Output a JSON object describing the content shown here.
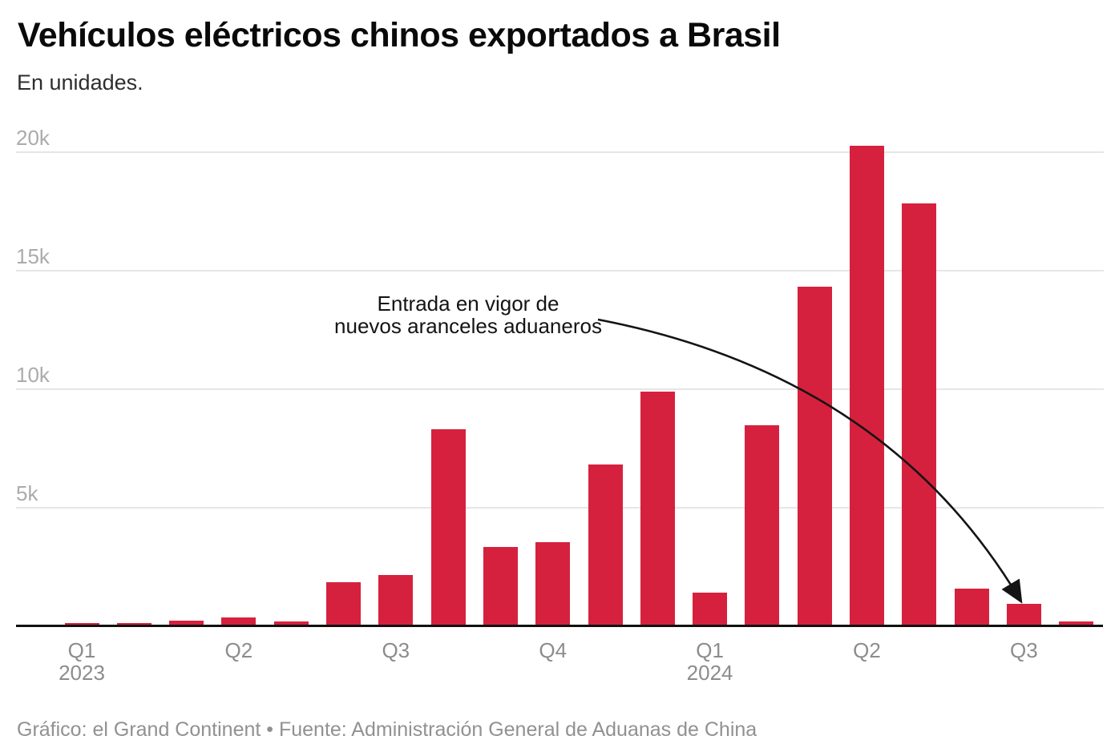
{
  "header": {
    "title": "Vehículos eléctricos chinos exportados a Brasil",
    "subtitle": "En unidades."
  },
  "chart_data": {
    "type": "bar",
    "title": "Vehículos eléctricos chinos exportados a Brasil",
    "subtitle": "En unidades.",
    "x": [
      "2023-01",
      "2023-02",
      "2023-03",
      "2023-04",
      "2023-05",
      "2023-06",
      "2023-07",
      "2023-08",
      "2023-09",
      "2023-10",
      "2023-11",
      "2023-12",
      "2024-01",
      "2024-02",
      "2024-03",
      "2024-04",
      "2024-05",
      "2024-06",
      "2024-07",
      "2024-08"
    ],
    "values": [
      100,
      100,
      200,
      330,
      170,
      1840,
      2140,
      8290,
      3300,
      3500,
      6790,
      9880,
      1390,
      8440,
      14280,
      20230,
      17790,
      1560,
      900,
      160
    ],
    "ylim": [
      0,
      20000
    ],
    "yticks": [
      {
        "label": "20k",
        "value": 20000
      },
      {
        "label": "15k",
        "value": 15000
      },
      {
        "label": "10k",
        "value": 10000
      },
      {
        "label": "5k",
        "value": 5000
      }
    ],
    "x_axis_quarters": [
      {
        "label": "Q1",
        "year": "2023",
        "first_bar_index": 0
      },
      {
        "label": "Q2",
        "year": "",
        "first_bar_index": 3
      },
      {
        "label": "Q3",
        "year": "",
        "first_bar_index": 6
      },
      {
        "label": "Q4",
        "year": "",
        "first_bar_index": 9
      },
      {
        "label": "Q1",
        "year": "2024",
        "first_bar_index": 12
      },
      {
        "label": "Q2",
        "year": "",
        "first_bar_index": 15
      },
      {
        "label": "Q3",
        "year": "",
        "first_bar_index": 18
      }
    ],
    "grid": "horizontal",
    "legend": "none",
    "bar_color": "#d6213e",
    "annotation": {
      "line1": "Entrada en vigor de",
      "line2": "nuevos aranceles aduaneros",
      "points_to_x": "2024-07"
    }
  },
  "footer": {
    "credit": "Gráfico: el Grand Continent • Fuente: Administración General de Aduanas de China"
  }
}
